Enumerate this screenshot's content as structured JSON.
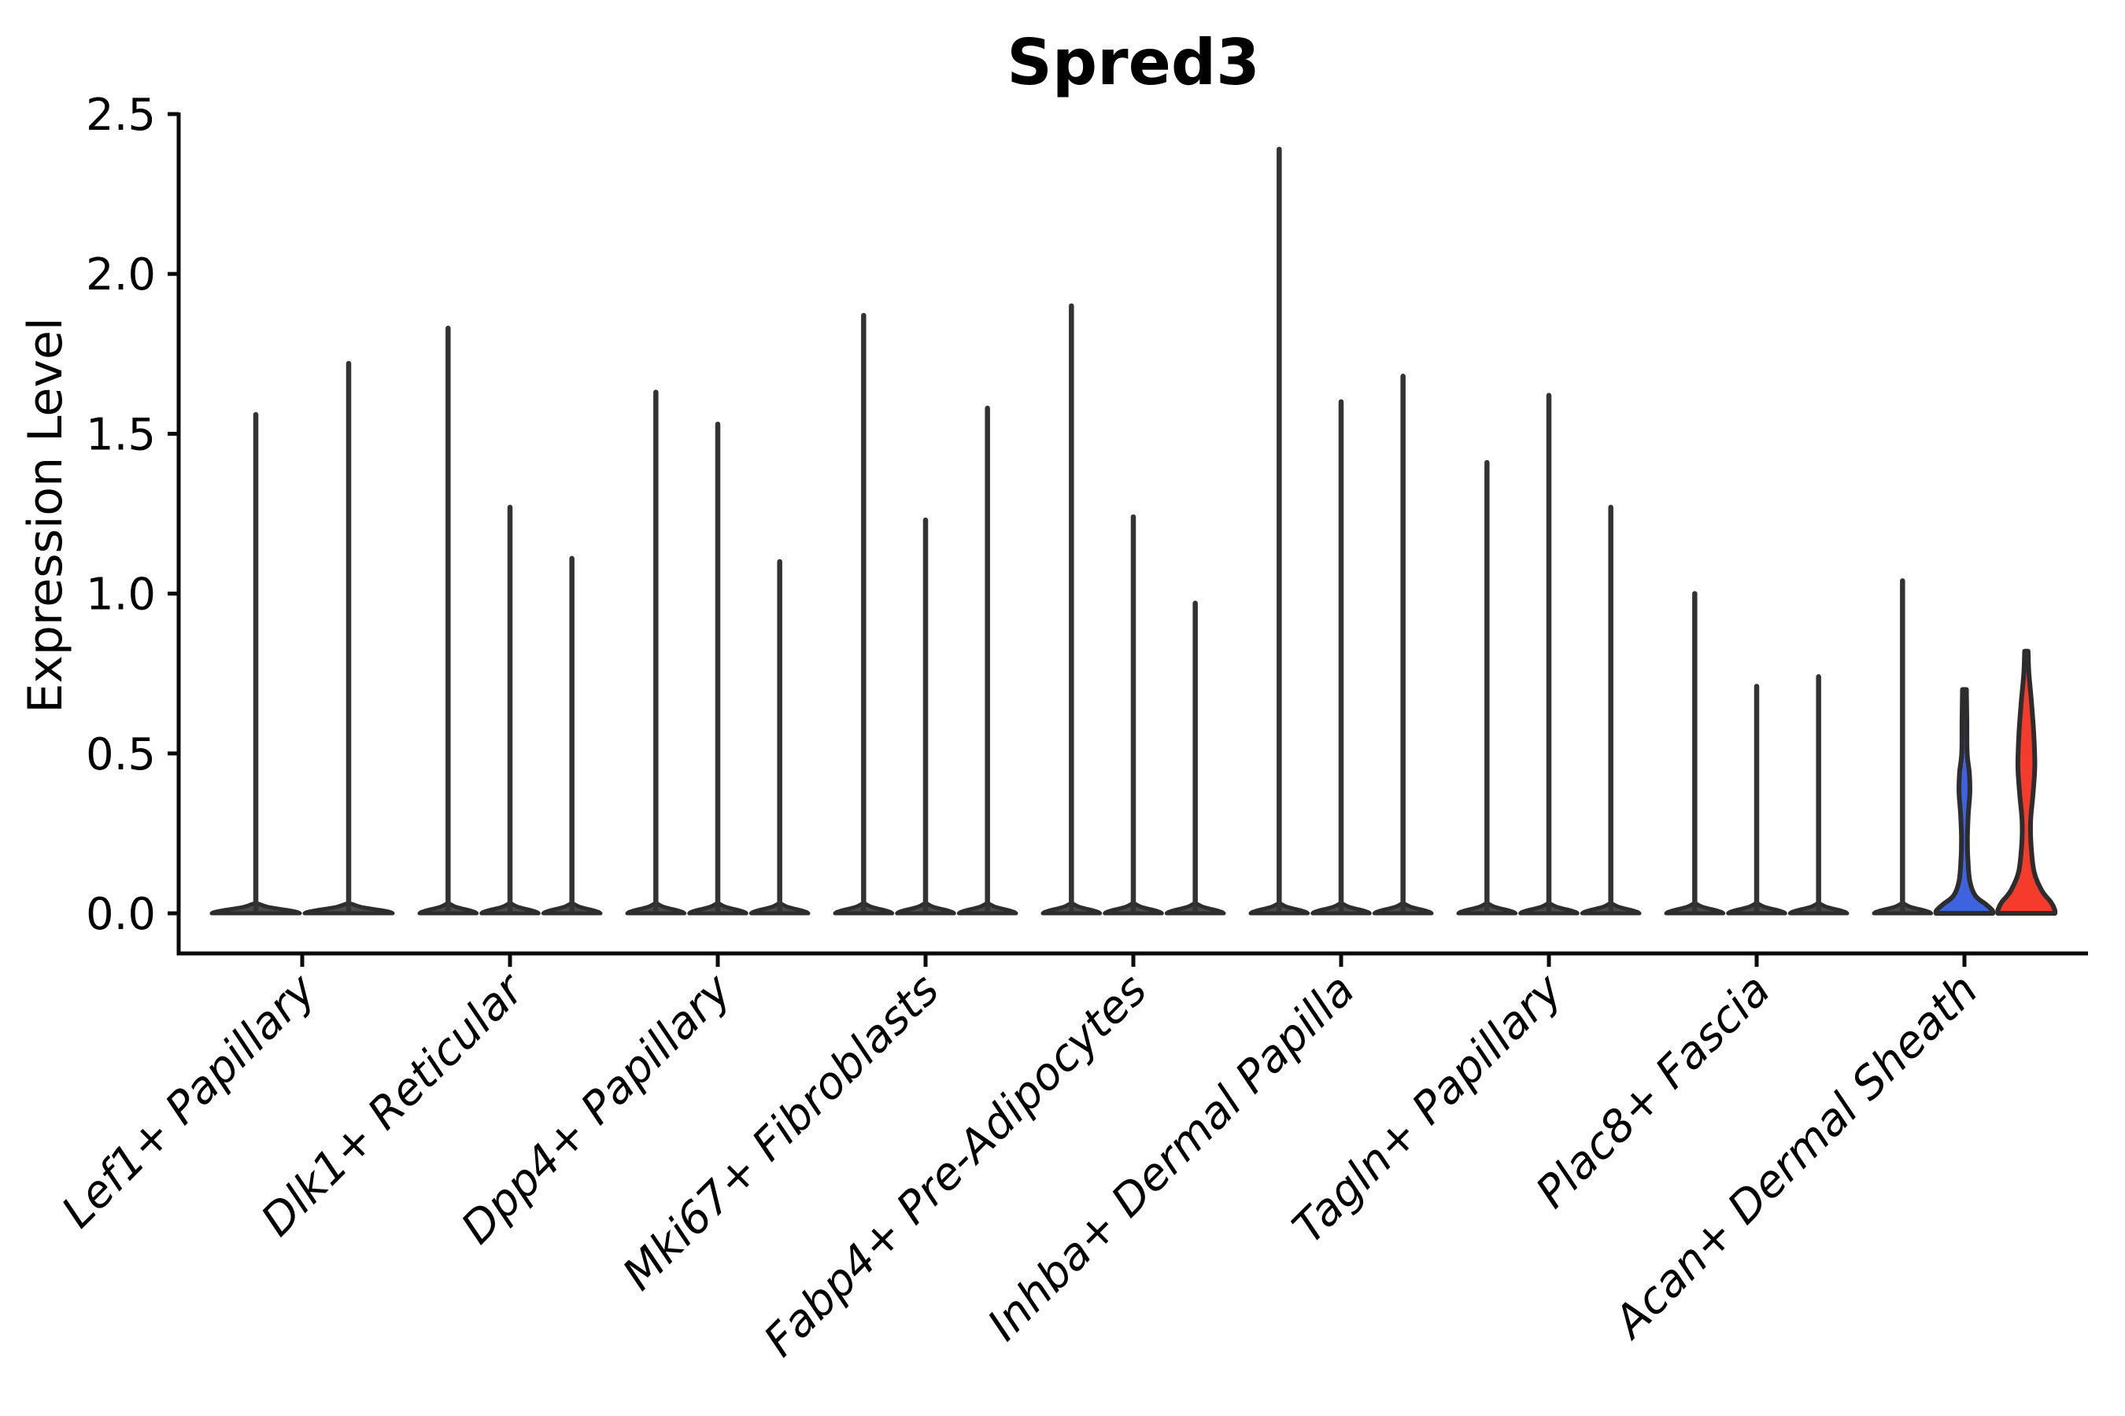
{
  "title": "Spred3",
  "y_axis": {
    "label": "Expression Level",
    "tick_labels": [
      "0.0",
      "0.5",
      "1.0",
      "1.5",
      "2.0",
      "2.5"
    ],
    "tick_values": [
      0,
      0.5,
      1.0,
      1.5,
      2.0,
      2.5
    ],
    "min": 0,
    "max": 2.5
  },
  "chart_data": {
    "type": "violin",
    "title": "Spred3",
    "xlabel": "",
    "ylabel": "Expression Level",
    "ylim": [
      0,
      2.5
    ],
    "yticks": [
      0,
      0.5,
      1.0,
      1.5,
      2.0,
      2.5
    ],
    "grid": false,
    "legend": "none",
    "categories": [
      "Lef1+ Papillary",
      "Dlk1+ Reticular",
      "Dpp4+ Papillary",
      "Mki67+ Fibroblasts",
      "Fabp4+ Pre-Adipocytes",
      "Inhba+ Dermal Papilla",
      "Tagln+ Papillary",
      "Plac8+ Fascia",
      "Acan+ Dermal Sheath"
    ],
    "groups": [
      {
        "label": "Lef1+ Papillary",
        "violins": [
          {
            "max": 1.56,
            "style": "thin",
            "color": "dark"
          },
          {
            "max": 1.72,
            "style": "thin",
            "color": "dark"
          }
        ]
      },
      {
        "label": "Dlk1+ Reticular",
        "violins": [
          {
            "max": 1.83,
            "style": "thin",
            "color": "dark"
          },
          {
            "max": 1.27,
            "style": "thin",
            "color": "dark"
          },
          {
            "max": 1.11,
            "style": "thin",
            "color": "dark"
          }
        ]
      },
      {
        "label": "Dpp4+ Papillary",
        "violins": [
          {
            "max": 1.63,
            "style": "thin",
            "color": "dark"
          },
          {
            "max": 1.53,
            "style": "thin",
            "color": "dark"
          },
          {
            "max": 1.1,
            "style": "thin",
            "color": "dark"
          }
        ]
      },
      {
        "label": "Mki67+ Fibroblasts",
        "violins": [
          {
            "max": 1.87,
            "style": "thin",
            "color": "dark"
          },
          {
            "max": 1.23,
            "style": "thin",
            "color": "dark"
          },
          {
            "max": 1.58,
            "style": "thin",
            "color": "dark"
          }
        ]
      },
      {
        "label": "Fabp4+ Pre-Adipocytes",
        "violins": [
          {
            "max": 1.9,
            "style": "thin",
            "color": "dark"
          },
          {
            "max": 1.24,
            "style": "thin",
            "color": "dark"
          },
          {
            "max": 0.97,
            "style": "thin",
            "color": "dark"
          }
        ]
      },
      {
        "label": "Inhba+ Dermal Papilla",
        "violins": [
          {
            "max": 2.39,
            "style": "thin",
            "color": "dark"
          },
          {
            "max": 1.6,
            "style": "thin",
            "color": "dark"
          },
          {
            "max": 1.68,
            "style": "thin",
            "color": "dark"
          }
        ]
      },
      {
        "label": "Tagln+ Papillary",
        "violins": [
          {
            "max": 1.41,
            "style": "thin",
            "color": "dark"
          },
          {
            "max": 1.62,
            "style": "thin",
            "color": "dark"
          },
          {
            "max": 1.27,
            "style": "thin",
            "color": "dark"
          }
        ]
      },
      {
        "label": "Plac8+ Fascia",
        "violins": [
          {
            "max": 1.0,
            "style": "thin",
            "color": "dark"
          },
          {
            "max": 0.71,
            "style": "thin",
            "color": "dark"
          },
          {
            "max": 0.74,
            "style": "thin",
            "color": "dark"
          }
        ]
      },
      {
        "label": "Acan+ Dermal Sheath",
        "violins": [
          {
            "max": 1.04,
            "style": "thin",
            "color": "dark"
          },
          {
            "max": 0.7,
            "style": "shaped",
            "color": "blue",
            "profile": [
              [
                0.7,
                0.07
              ],
              [
                0.6,
                0.085
              ],
              [
                0.5,
                0.095
              ],
              [
                0.44,
                0.17
              ],
              [
                0.38,
                0.19
              ],
              [
                0.31,
                0.135
              ],
              [
                0.24,
                0.105
              ],
              [
                0.17,
                0.12
              ],
              [
                0.1,
                0.19
              ],
              [
                0.055,
                0.38
              ],
              [
                0.028,
                0.75
              ],
              [
                0.01,
                0.97
              ],
              [
                0.0,
                1.0
              ]
            ]
          },
          {
            "max": 0.82,
            "style": "shaped",
            "color": "red",
            "profile": [
              [
                0.82,
                0.055
              ],
              [
                0.75,
                0.09
              ],
              [
                0.66,
                0.18
              ],
              [
                0.56,
                0.26
              ],
              [
                0.46,
                0.295
              ],
              [
                0.37,
                0.23
              ],
              [
                0.29,
                0.15
              ],
              [
                0.22,
                0.16
              ],
              [
                0.13,
                0.27
              ],
              [
                0.07,
                0.55
              ],
              [
                0.035,
                0.86
              ],
              [
                0.012,
                0.99
              ],
              [
                0.0,
                1.0
              ]
            ]
          }
        ]
      }
    ],
    "colors": {
      "blue": "#3F62E0",
      "red": "#F53B2C",
      "dark_fill": "#4a4a4a",
      "outline": "#2d2d2d",
      "spike": "#333333",
      "axis": "#0a0a0a",
      "text": "#000000"
    }
  }
}
